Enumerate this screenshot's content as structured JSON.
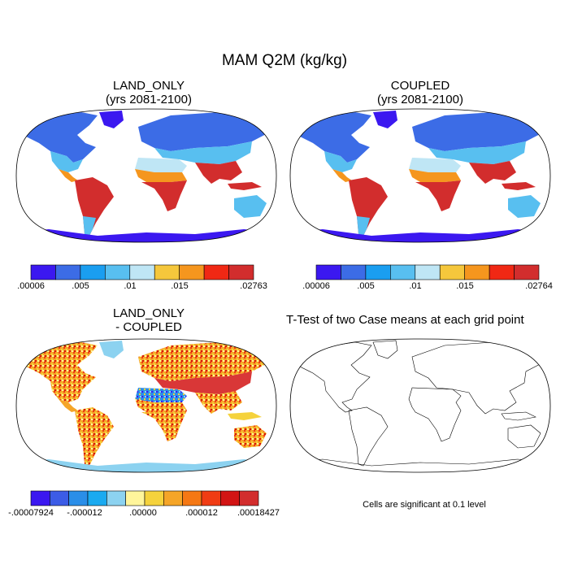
{
  "figure": {
    "title": "MAM Q2M (kg/kg)"
  },
  "panels": {
    "land_only": {
      "title_line1": "LAND_ONLY",
      "title_line2": "(yrs 2081-2100)",
      "colorbar_labels": [
        ".00006",
        ".005",
        ".01",
        ".015",
        ".02763"
      ]
    },
    "coupled": {
      "title_line1": "COUPLED",
      "title_line2": "(yrs 2081-2100)",
      "colorbar_labels": [
        ".00006",
        ".005",
        ".01",
        ".015",
        ".02764"
      ]
    },
    "difference": {
      "title_line1": "LAND_ONLY",
      "title_line2": "- COUPLED",
      "colorbar_labels": [
        "-.00007924",
        "-.000012",
        ".00000",
        ".000012",
        ".00018427"
      ]
    },
    "ttest": {
      "title": "T-Test of two Case means at each grid point",
      "note": "Cells are significant at 0.1 level"
    }
  },
  "colors": {
    "seq_scale": [
      "#3b18f0",
      "#3c6ce6",
      "#1a9ef0",
      "#58bff0",
      "#bfe6f5",
      "#f5c73c",
      "#f5961e",
      "#f02814",
      "#d22d2d"
    ],
    "div_scale": [
      "#3b18f0",
      "#3c5ce6",
      "#2a8ee8",
      "#1aaaf0",
      "#8cd2f0",
      "#fff59b",
      "#f5d23c",
      "#f5a528",
      "#f57814",
      "#f03c14",
      "#d21414",
      "#d22d2d"
    ],
    "ocean_fill": "#ffffff",
    "coast": "#000000"
  }
}
